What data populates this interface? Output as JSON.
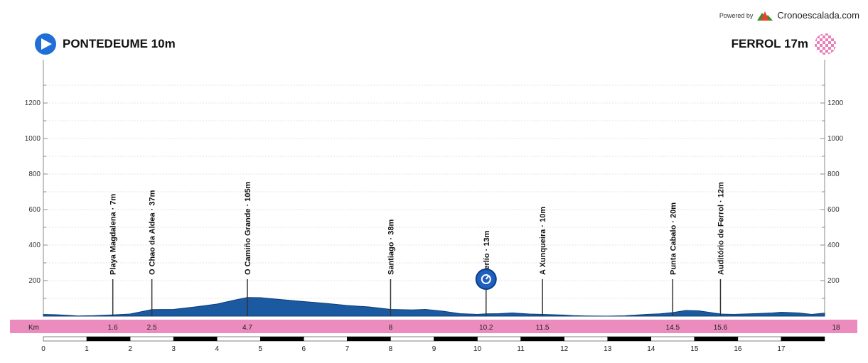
{
  "branding": {
    "powered_by": "Powered by",
    "brand": "Cronoescalada.com"
  },
  "start": {
    "label": "PONTEDEUME 10m"
  },
  "finish": {
    "label": "FERROL 17m"
  },
  "colors": {
    "profile": "#1b5aa0",
    "profile_dark": "#0e3f7a",
    "km_band": "#ec8bbd",
    "start_icon": "#1f6fd6",
    "finish_icon": "#e87fb6"
  },
  "chart_data": {
    "type": "area",
    "xlabel": "Km",
    "x_range": [
      0,
      18
    ],
    "y_range": [
      0,
      1300
    ],
    "y_ticks": [
      200,
      400,
      600,
      800,
      1000,
      1200
    ],
    "x_ticks": [
      0,
      1,
      2,
      3,
      4,
      5,
      6,
      7,
      8,
      9,
      10,
      11,
      12,
      13,
      14,
      15,
      16,
      17
    ],
    "grid": true,
    "profile": [
      [
        0,
        10
      ],
      [
        0.3,
        8
      ],
      [
        0.6,
        4
      ],
      [
        0.8,
        1
      ],
      [
        1.2,
        3
      ],
      [
        1.6,
        7
      ],
      [
        2.0,
        12
      ],
      [
        2.5,
        37
      ],
      [
        3.0,
        38
      ],
      [
        3.5,
        52
      ],
      [
        4.0,
        68
      ],
      [
        4.4,
        90
      ],
      [
        4.7,
        105
      ],
      [
        5.0,
        104
      ],
      [
        5.4,
        95
      ],
      [
        6.0,
        82
      ],
      [
        6.5,
        72
      ],
      [
        7.0,
        60
      ],
      [
        7.5,
        52
      ],
      [
        8.0,
        38
      ],
      [
        8.5,
        35
      ],
      [
        8.8,
        38
      ],
      [
        9.2,
        28
      ],
      [
        9.6,
        14
      ],
      [
        10.0,
        10
      ],
      [
        10.2,
        13
      ],
      [
        10.5,
        14
      ],
      [
        10.8,
        18
      ],
      [
        11.2,
        12
      ],
      [
        11.5,
        10
      ],
      [
        12.0,
        6
      ],
      [
        12.2,
        3
      ],
      [
        12.5,
        1
      ],
      [
        13.0,
        0
      ],
      [
        13.4,
        2
      ],
      [
        13.9,
        10
      ],
      [
        14.2,
        13
      ],
      [
        14.5,
        20
      ],
      [
        14.8,
        32
      ],
      [
        15.1,
        30
      ],
      [
        15.6,
        12
      ],
      [
        15.9,
        10
      ],
      [
        16.4,
        14
      ],
      [
        16.8,
        18
      ],
      [
        17.0,
        22
      ],
      [
        17.4,
        18
      ],
      [
        17.7,
        10
      ],
      [
        18.0,
        17
      ]
    ],
    "waypoints": [
      {
        "km": 1.6,
        "name": "Playa Magdalena · 7m"
      },
      {
        "km": 2.5,
        "name": "O Chao da Aldea · 37m"
      },
      {
        "km": 4.7,
        "name": "O Camiño Grande · 105m"
      },
      {
        "km": 8.0,
        "name": "Santiago · 38m"
      },
      {
        "km": 10.2,
        "name": "Perlío · 13m",
        "icon": "clock-icon"
      },
      {
        "km": 11.5,
        "name": "A Xunqueira · 10m"
      },
      {
        "km": 14.5,
        "name": "Punta Cabalo · 20m"
      },
      {
        "km": 15.6,
        "name": "Auditório de Ferrol · 12m"
      }
    ],
    "km_band_labels": [
      "1.6",
      "2.5",
      "4.7",
      "8",
      "10.2",
      "11.5",
      "14.5",
      "15.6",
      "18"
    ]
  }
}
